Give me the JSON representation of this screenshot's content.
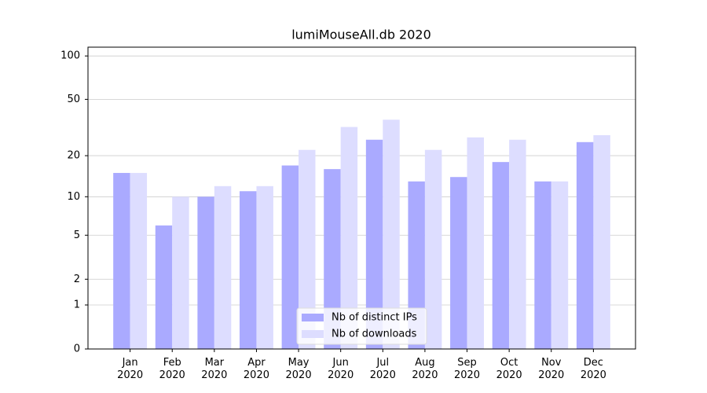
{
  "chart_data": {
    "type": "bar",
    "title": "lumiMouseAll.db 2020",
    "categories": [
      [
        "Jan",
        "2020"
      ],
      [
        "Feb",
        "2020"
      ],
      [
        "Mar",
        "2020"
      ],
      [
        "Apr",
        "2020"
      ],
      [
        "May",
        "2020"
      ],
      [
        "Jun",
        "2020"
      ],
      [
        "Jul",
        "2020"
      ],
      [
        "Aug",
        "2020"
      ],
      [
        "Sep",
        "2020"
      ],
      [
        "Oct",
        "2020"
      ],
      [
        "Nov",
        "2020"
      ],
      [
        "Dec",
        "2020"
      ]
    ],
    "series": [
      {
        "name": "Nb of distinct IPs",
        "color": "#aaaaff",
        "values": [
          15,
          6,
          10,
          11,
          17,
          16,
          26,
          13,
          14,
          18,
          13,
          25
        ]
      },
      {
        "name": "Nb of downloads",
        "color": "#ddddff",
        "values": [
          15,
          10,
          12,
          12,
          22,
          32,
          36,
          22,
          27,
          26,
          13,
          28
        ]
      }
    ],
    "yscale": "log1p",
    "ylim": [
      0,
      115
    ],
    "yticks": [
      0,
      1,
      2,
      5,
      10,
      20,
      50,
      100
    ],
    "grid": true,
    "legend": "lower center"
  }
}
